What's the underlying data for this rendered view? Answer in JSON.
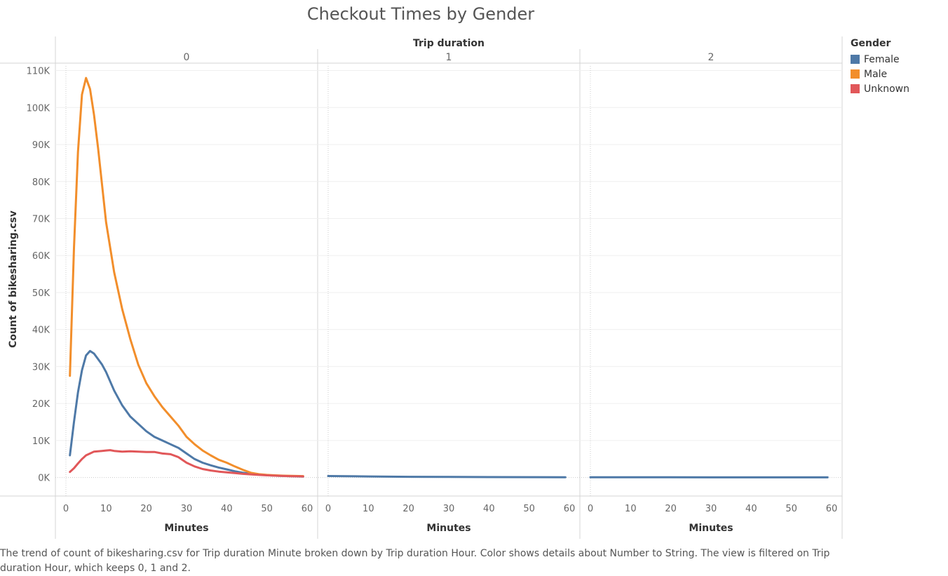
{
  "title": "Checkout Times by Gender",
  "caption": "The trend of count of bikesharing.csv for Trip duration Minute broken down by Trip duration Hour.  Color shows details about Number to String. The view is filtered on Trip duration Hour, which keeps 0, 1 and 2.",
  "legend": {
    "title": "Gender",
    "items": [
      {
        "label": "Female",
        "color": "#4e79a7"
      },
      {
        "label": "Male",
        "color": "#f28e2b"
      },
      {
        "label": "Unknown",
        "color": "#e15759"
      }
    ]
  },
  "chart_data": {
    "type": "line",
    "title": "Checkout Times by Gender",
    "column_header": "Trip duration",
    "panels": [
      "0",
      "1",
      "2"
    ],
    "xlabel": "Minutes",
    "ylabel": "Count of bikesharing.csv",
    "xlim": [
      0,
      60
    ],
    "ylim": [
      -5000,
      112000
    ],
    "xticks": [
      0,
      10,
      20,
      30,
      40,
      50,
      60
    ],
    "yticks": [
      0,
      10000,
      20000,
      30000,
      40000,
      50000,
      60000,
      70000,
      80000,
      90000,
      100000,
      110000
    ],
    "ytick_labels": [
      "0K",
      "10K",
      "20K",
      "30K",
      "40K",
      "50K",
      "60K",
      "70K",
      "80K",
      "90K",
      "100K",
      "110K"
    ],
    "grid": true,
    "legend_position": "right",
    "series_by_panel": [
      [
        {
          "name": "Female",
          "color": "#4e79a7",
          "x": [
            1,
            2,
            3,
            4,
            5,
            6,
            7,
            8,
            9,
            10,
            12,
            14,
            16,
            18,
            20,
            22,
            24,
            26,
            28,
            30,
            32,
            34,
            36,
            38,
            40,
            42,
            44,
            46,
            48,
            50,
            52,
            54,
            56,
            58,
            59
          ],
          "y": [
            6000,
            15000,
            23000,
            29000,
            33000,
            34200,
            33500,
            32000,
            30500,
            28500,
            23500,
            19500,
            16500,
            14500,
            12500,
            11000,
            10000,
            9000,
            8000,
            6500,
            5000,
            4000,
            3300,
            2700,
            2200,
            1700,
            1300,
            1000,
            800,
            650,
            500,
            420,
            350,
            300,
            280
          ]
        },
        {
          "name": "Male",
          "color": "#f28e2b",
          "x": [
            1,
            2,
            3,
            4,
            5,
            6,
            7,
            8,
            9,
            10,
            12,
            14,
            16,
            18,
            20,
            22,
            24,
            26,
            28,
            30,
            32,
            34,
            36,
            38,
            40,
            42,
            44,
            46,
            48,
            50,
            52,
            54,
            56,
            58,
            59
          ],
          "y": [
            27500,
            62000,
            88000,
            103500,
            108000,
            105000,
            98000,
            89000,
            79000,
            69000,
            55500,
            45500,
            37500,
            30500,
            25500,
            22000,
            19000,
            16500,
            14000,
            11000,
            9000,
            7300,
            6000,
            4800,
            4000,
            3000,
            2100,
            1300,
            900,
            700,
            600,
            500,
            450,
            400,
            380
          ]
        },
        {
          "name": "Unknown",
          "color": "#e15759",
          "x": [
            1,
            2,
            3,
            4,
            5,
            6,
            7,
            8,
            9,
            10,
            11,
            12,
            14,
            16,
            18,
            20,
            22,
            24,
            26,
            28,
            30,
            32,
            34,
            36,
            38,
            40,
            42,
            44,
            46,
            48,
            50,
            52,
            54,
            56,
            58,
            59
          ],
          "y": [
            1500,
            2500,
            3800,
            5000,
            6000,
            6500,
            7000,
            7100,
            7200,
            7300,
            7400,
            7200,
            7000,
            7100,
            7000,
            6900,
            6900,
            6500,
            6300,
            5500,
            4000,
            3000,
            2300,
            1900,
            1600,
            1400,
            1200,
            1000,
            850,
            700,
            600,
            500,
            420,
            360,
            320,
            300
          ]
        }
      ],
      [
        {
          "name": "Female",
          "color": "#4e79a7",
          "x": [
            0,
            10,
            20,
            30,
            40,
            50,
            59
          ],
          "y": [
            400,
            300,
            200,
            150,
            120,
            100,
            80
          ]
        }
      ],
      [
        {
          "name": "Female",
          "color": "#4e79a7",
          "x": [
            0,
            10,
            20,
            30,
            40,
            50,
            59
          ],
          "y": [
            80,
            70,
            60,
            50,
            50,
            40,
            40
          ]
        }
      ]
    ]
  }
}
